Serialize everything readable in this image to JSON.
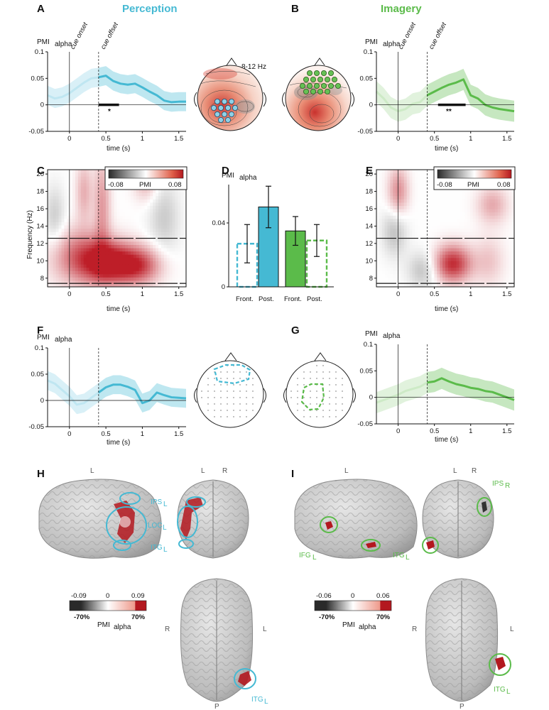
{
  "figure": {
    "colors": {
      "perception": "#45b9d3",
      "perception_light": "#bfe6f1",
      "imagery": "#5bbb4a",
      "imagery_light": "#cdeac6",
      "red": "#c0272d",
      "dark_grey": "#333333"
    },
    "panels": {
      "A": {
        "letter": "A",
        "title": "Perception"
      },
      "B": {
        "letter": "B",
        "title": "Imagery"
      },
      "C": {
        "letter": "C"
      },
      "D": {
        "letter": "D"
      },
      "E": {
        "letter": "E"
      },
      "F": {
        "letter": "F"
      },
      "G": {
        "letter": "G"
      },
      "H": {
        "letter": "H"
      },
      "I": {
        "letter": "I"
      }
    },
    "topo_band": "8-12 Hz",
    "annotations": {
      "cue_onset": "cue onset",
      "cue_offset": "cue offset"
    },
    "ylabel_main": "PMI",
    "ylabel_sub": "alpha",
    "xlabel": "time (s)",
    "freq_label": "Frequency (Hz)",
    "colorbar": {
      "min": "-0.08",
      "mid": "PMI",
      "max": "0.08"
    },
    "sig": {
      "A": "*",
      "B": "**"
    },
    "bar_xlabels": [
      "Front.",
      "Post.",
      "Front.",
      "Post."
    ],
    "brain_H": {
      "cbar_min": "-0.09",
      "cbar_mid": "0",
      "cbar_max": "0.09",
      "pct_neg": "-70%",
      "pct_pos": "70%",
      "labels": [
        "IPS",
        "LOC",
        "ITG",
        "ITG"
      ],
      "sub": "L",
      "views": {
        "left_lat": "L",
        "post_l": "L",
        "post_r": "R",
        "inf_r": "R",
        "inf_l": "L",
        "inf_p": "P"
      }
    },
    "brain_I": {
      "cbar_min": "-0.06",
      "cbar_mid": "0",
      "cbar_max": "0.06",
      "pct_neg": "-70%",
      "pct_pos": "70%",
      "labels": [
        "IFG",
        "ITG",
        "IPS",
        "ITG"
      ],
      "subs": [
        "L",
        "L",
        "R",
        "L"
      ],
      "views": {
        "left_lat": "L",
        "post_l": "L",
        "post_r": "R",
        "inf_r": "R",
        "inf_l": "L",
        "inf_p": "P"
      }
    }
  },
  "chart_data": [
    {
      "id": "A",
      "type": "line",
      "title": "Perception",
      "xlabel": "time (s)",
      "ylabel": "PMI alpha",
      "xlim": [
        -0.3,
        1.6
      ],
      "ylim": [
        -0.05,
        0.1
      ],
      "xticks": [
        "0",
        "0.5",
        "1",
        "1.5"
      ],
      "yticks": [
        "-0.05",
        "0",
        "0.05",
        "0.1"
      ],
      "x": [
        -0.3,
        -0.2,
        -0.1,
        0,
        0.1,
        0.2,
        0.3,
        0.4,
        0.5,
        0.6,
        0.7,
        0.8,
        0.9,
        1.0,
        1.1,
        1.2,
        1.3,
        1.4,
        1.5,
        1.6
      ],
      "y": [
        0.018,
        0.012,
        0.015,
        0.022,
        0.032,
        0.042,
        0.05,
        0.052,
        0.055,
        0.045,
        0.04,
        0.038,
        0.04,
        0.033,
        0.025,
        0.018,
        0.008,
        0.005,
        0.006,
        0.006
      ],
      "err": 0.018,
      "significance": {
        "xrange": [
          0.4,
          0.68
        ],
        "label": "*"
      }
    },
    {
      "id": "B",
      "type": "line",
      "title": "Imagery",
      "xlabel": "time (s)",
      "ylabel": "PMI alpha",
      "xlim": [
        -0.3,
        1.6
      ],
      "ylim": [
        -0.05,
        0.1
      ],
      "xticks": [
        "0",
        "0.5",
        "1",
        "1.5"
      ],
      "yticks": [
        "-0.05",
        "0",
        "0.05",
        "0.1"
      ],
      "x": [
        -0.3,
        -0.2,
        -0.1,
        0,
        0.1,
        0.2,
        0.3,
        0.4,
        0.5,
        0.6,
        0.7,
        0.8,
        0.9,
        1.0,
        1.1,
        1.2,
        1.3,
        1.4,
        1.5,
        1.6
      ],
      "y": [
        0.025,
        0.012,
        -0.005,
        -0.012,
        -0.008,
        0.002,
        0.005,
        0.018,
        0.025,
        0.032,
        0.038,
        0.042,
        0.048,
        0.018,
        0.012,
        0.0,
        -0.005,
        -0.008,
        -0.01,
        -0.012
      ],
      "err": 0.02,
      "significance": {
        "xrange": [
          0.55,
          0.93
        ],
        "label": "**"
      }
    },
    {
      "id": "C",
      "type": "heatmap",
      "xlabel": "time (s)",
      "ylabel": "Frequency (Hz)",
      "xlim": [
        -0.3,
        1.6
      ],
      "ylim": [
        7,
        20.5
      ],
      "xticks": [
        "0",
        "0.5",
        "1",
        "1.5"
      ],
      "yticks": [
        "8",
        "10",
        "12",
        "14",
        "16",
        "18",
        "20"
      ],
      "band_lines": [
        7.4,
        12.6
      ],
      "clim": [
        -0.08,
        0.08
      ],
      "blobs": [
        {
          "t": 0.55,
          "f": 9.8,
          "amp": 0.08,
          "st": 0.25,
          "sf": 1.7
        },
        {
          "t": 0.95,
          "f": 9.5,
          "amp": 0.06,
          "st": 0.22,
          "sf": 1.5
        },
        {
          "t": 0.15,
          "f": 10.5,
          "amp": 0.05,
          "st": 0.28,
          "sf": 2.2
        },
        {
          "t": 0.45,
          "f": 16.5,
          "amp": 0.035,
          "st": 0.08,
          "sf": 4.0
        },
        {
          "t": 0.2,
          "f": 18.0,
          "amp": 0.028,
          "st": 0.08,
          "sf": 2.5
        },
        {
          "t": -0.2,
          "f": 15.0,
          "amp": -0.02,
          "st": 0.1,
          "sf": 2.5
        },
        {
          "t": 1.3,
          "f": 15.0,
          "amp": -0.02,
          "st": 0.15,
          "sf": 3.0
        },
        {
          "t": 1.05,
          "f": 19.0,
          "amp": 0.025,
          "st": 0.12,
          "sf": 1.5
        }
      ]
    },
    {
      "id": "D",
      "type": "bar",
      "ylabel": "PMI alpha",
      "categories": [
        "Front.",
        "Post.",
        "Front.",
        "Post."
      ],
      "groups": [
        "Perception",
        "Perception",
        "Imagery",
        "Imagery"
      ],
      "values": [
        0.027,
        0.05,
        0.035,
        0.029
      ],
      "errors": [
        0.012,
        0.013,
        0.009,
        0.01
      ],
      "filled": [
        false,
        true,
        true,
        false
      ],
      "ylim": [
        0,
        0.064
      ],
      "yticks": [
        "0",
        "0.04"
      ]
    },
    {
      "id": "E",
      "type": "heatmap",
      "xlabel": "time (s)",
      "ylabel": "Frequency (Hz)",
      "xlim": [
        -0.3,
        1.6
      ],
      "ylim": [
        7,
        20.5
      ],
      "xticks": [
        "0",
        "0.5",
        "1",
        "1.5"
      ],
      "yticks": [
        "8",
        "10",
        "12",
        "14",
        "16",
        "18",
        "20"
      ],
      "band_lines": [
        7.4,
        12.6
      ],
      "clim": [
        -0.08,
        0.08
      ],
      "blobs": [
        {
          "t": 0.75,
          "f": 9.7,
          "amp": 0.075,
          "st": 0.18,
          "sf": 1.5
        },
        {
          "t": 0.0,
          "f": 18.0,
          "amp": 0.04,
          "st": 0.1,
          "sf": 2.0
        },
        {
          "t": -0.05,
          "f": 13.5,
          "amp": -0.025,
          "st": 0.12,
          "sf": 2.0
        },
        {
          "t": 0.35,
          "f": 9.0,
          "amp": -0.025,
          "st": 0.15,
          "sf": 1.5
        },
        {
          "t": 1.3,
          "f": 16.5,
          "amp": 0.03,
          "st": 0.15,
          "sf": 1.5
        },
        {
          "t": 1.25,
          "f": 10.0,
          "amp": 0.02,
          "st": 0.15,
          "sf": 2.0
        }
      ]
    },
    {
      "id": "F",
      "type": "line",
      "xlabel": "time (s)",
      "ylabel": "PMI alpha",
      "xlim": [
        -0.3,
        1.6
      ],
      "ylim": [
        -0.05,
        0.1
      ],
      "xticks": [
        "0",
        "0.5",
        "1",
        "1.5"
      ],
      "yticks": [
        "-0.05",
        "0",
        "0.05",
        "0.1"
      ],
      "x": [
        -0.3,
        -0.2,
        -0.1,
        0,
        0.1,
        0.2,
        0.3,
        0.4,
        0.5,
        0.6,
        0.7,
        0.8,
        0.9,
        1.0,
        1.1,
        1.2,
        1.3,
        1.4,
        1.5,
        1.6
      ],
      "y": [
        0.038,
        0.032,
        0.02,
        0.008,
        -0.008,
        -0.005,
        0.005,
        0.015,
        0.025,
        0.03,
        0.03,
        0.026,
        0.02,
        -0.005,
        0.0,
        0.015,
        0.01,
        0.006,
        0.005,
        0.004
      ],
      "err": 0.018
    },
    {
      "id": "G",
      "type": "line",
      "xlabel": "time (s)",
      "ylabel": "PMI alpha",
      "xlim": [
        -0.3,
        1.6
      ],
      "ylim": [
        -0.05,
        0.1
      ],
      "xticks": [
        "0",
        "0.5",
        "1",
        "1.5"
      ],
      "yticks": [
        "-0.05",
        "0",
        "0.05",
        "0.1"
      ],
      "x": [
        -0.3,
        -0.2,
        -0.1,
        0,
        0.1,
        0.2,
        0.3,
        0.4,
        0.5,
        0.6,
        0.7,
        0.8,
        0.9,
        1.0,
        1.1,
        1.2,
        1.3,
        1.4,
        1.5,
        1.6
      ],
      "y": [
        -0.01,
        -0.005,
        0.0,
        0.005,
        0.012,
        0.016,
        0.02,
        0.028,
        0.03,
        0.036,
        0.03,
        0.025,
        0.022,
        0.018,
        0.016,
        0.012,
        0.01,
        0.005,
        0.0,
        -0.005
      ],
      "err": 0.02
    }
  ]
}
